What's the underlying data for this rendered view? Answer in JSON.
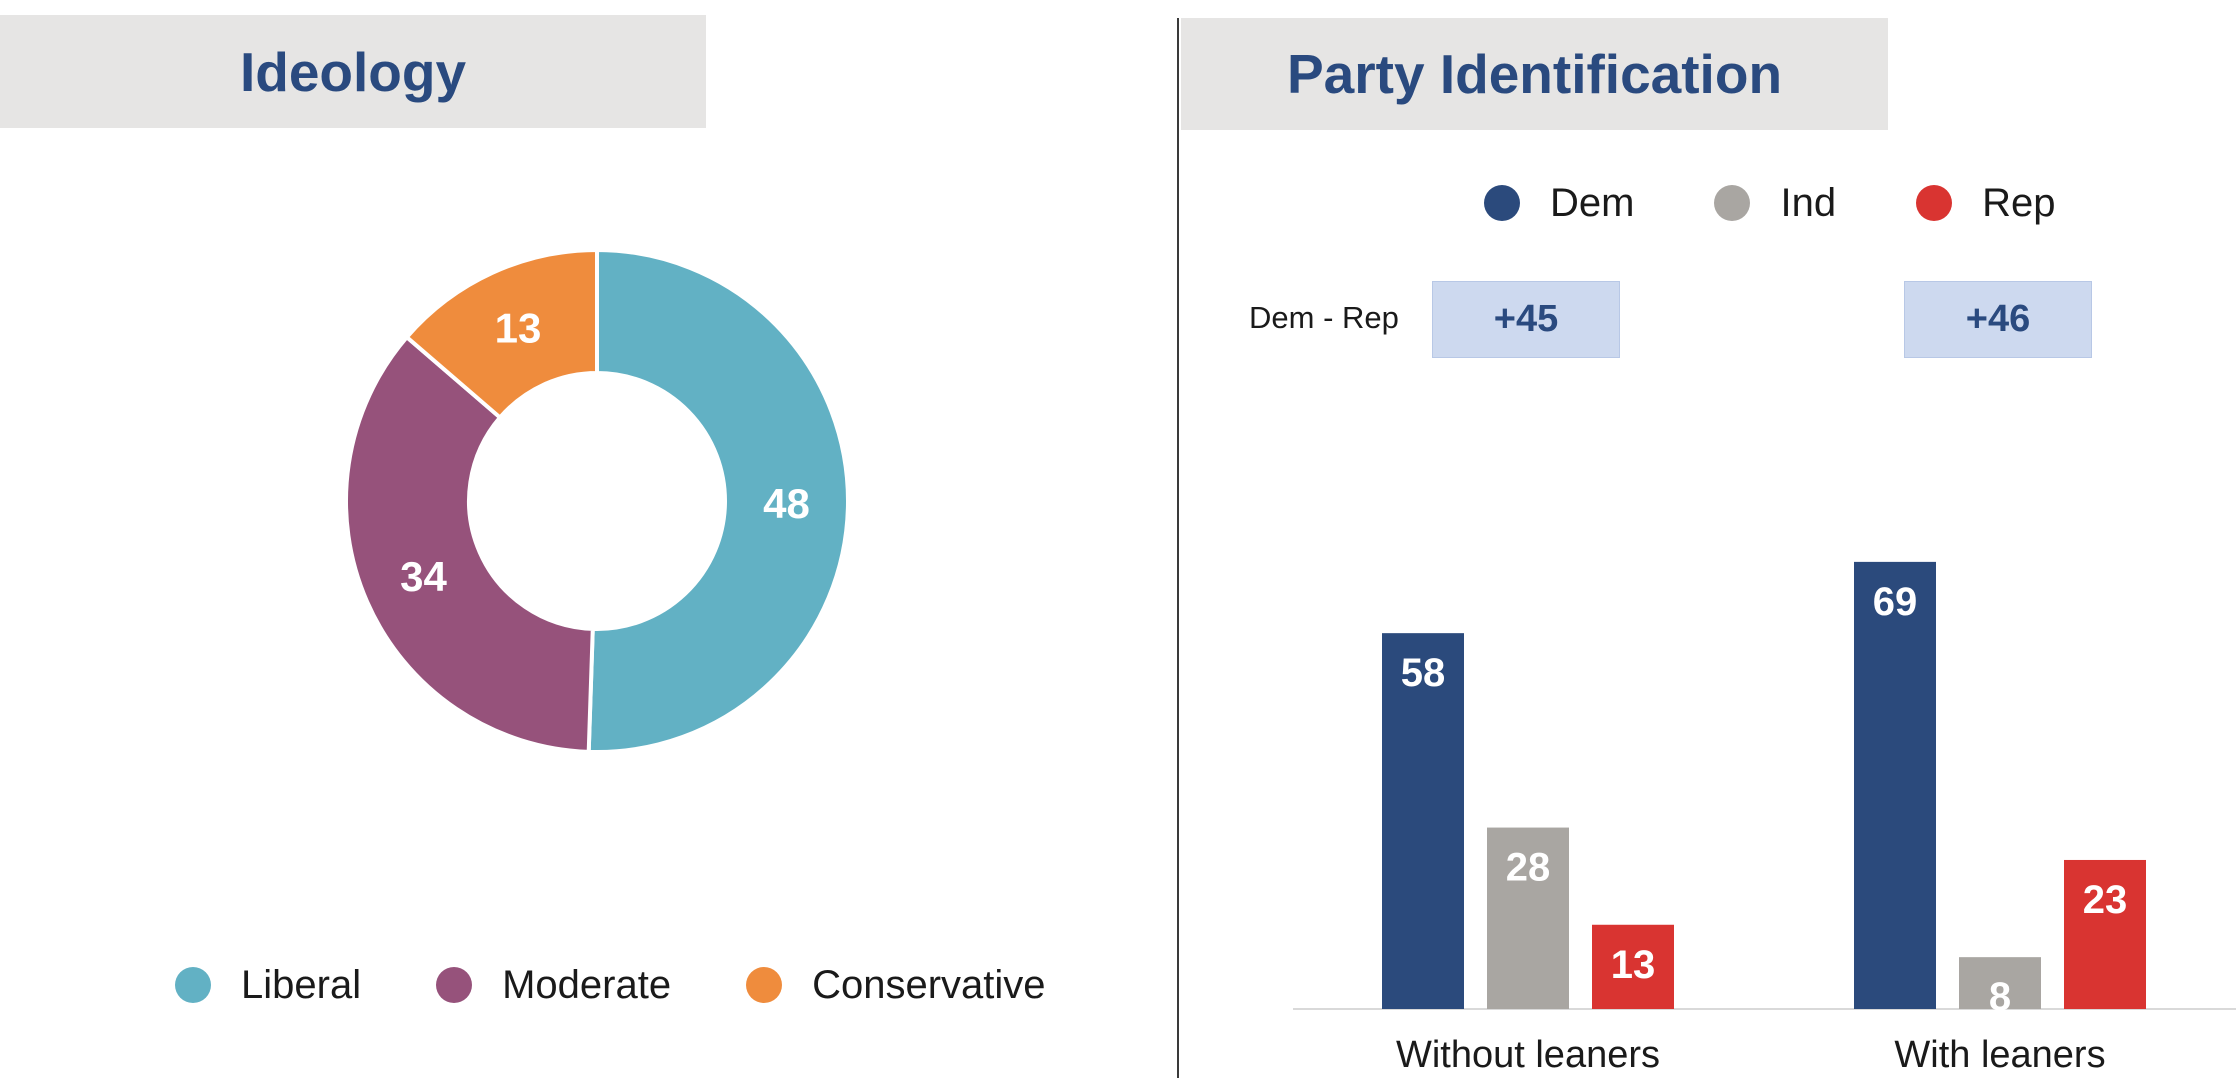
{
  "ideology": {
    "title": "Ideology"
  },
  "party": {
    "title": "Party Identification",
    "diff_label": "Dem - Rep",
    "diffs": [
      "+45",
      "+46"
    ]
  },
  "chart_data": [
    {
      "type": "pie",
      "title": "Ideology",
      "variant": "donut",
      "categories": [
        "Liberal",
        "Moderate",
        "Conservative"
      ],
      "values": [
        48,
        34,
        13
      ],
      "colors": [
        "#62b1c4",
        "#96527b",
        "#ef8c3d"
      ],
      "legend": "bottom"
    },
    {
      "type": "bar",
      "title": "Party Identification",
      "categories": [
        "Without leaners",
        "With leaners"
      ],
      "series": [
        {
          "name": "Dem",
          "values": [
            58,
            69
          ],
          "color": "#2b4a7c"
        },
        {
          "name": "Ind",
          "values": [
            28,
            8
          ],
          "color": "#a9a6a2"
        },
        {
          "name": "Rep",
          "values": [
            13,
            23
          ],
          "color": "#d93431"
        }
      ],
      "ylim": [
        0,
        100
      ],
      "grid": false,
      "legend": "top"
    }
  ]
}
